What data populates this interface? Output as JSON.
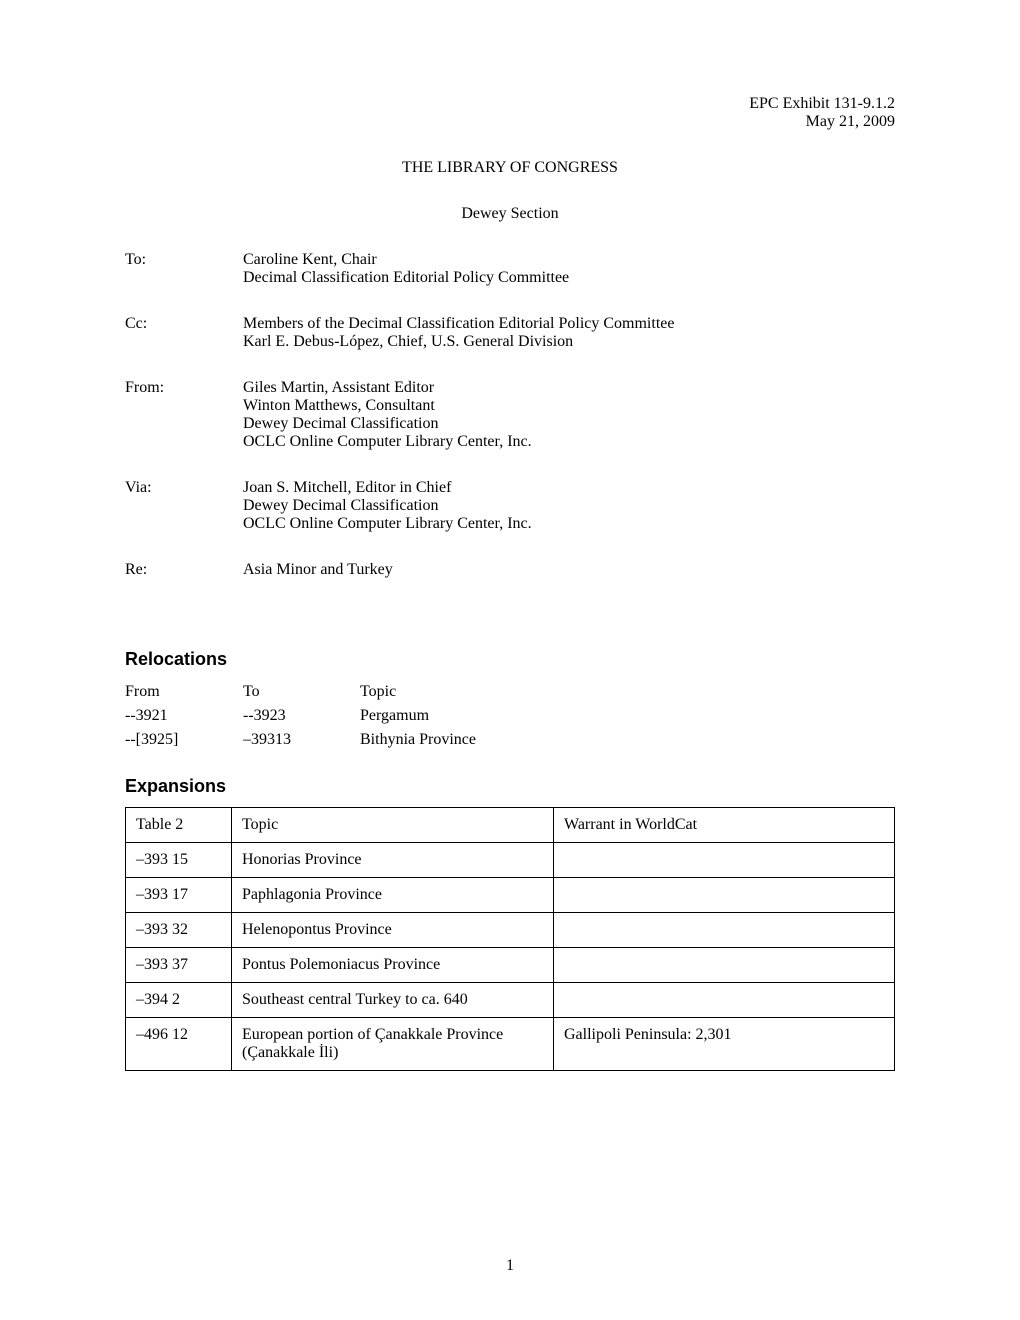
{
  "header": {
    "exhibit": "EPC Exhibit 131-9.1.2",
    "date": "May 21, 2009"
  },
  "title": "THE LIBRARY OF CONGRESS",
  "subtitle": "Dewey Section",
  "memo": {
    "to_label": "To:",
    "to_line1": "Caroline Kent, Chair",
    "to_line2": "Decimal Classification Editorial Policy Committee",
    "cc_label": "Cc:",
    "cc_line1": "Members of the Decimal Classification Editorial Policy Committee",
    "cc_line2": "Karl E. Debus-López, Chief, U.S. General Division",
    "from_label": "From:",
    "from_line1": "Giles Martin, Assistant Editor",
    "from_line2": "Winton Matthews, Consultant",
    "from_line3": "Dewey Decimal Classification",
    "from_line4": "OCLC Online Computer Library Center, Inc.",
    "via_label": "Via:",
    "via_line1": "Joan S. Mitchell, Editor in Chief",
    "via_line2": "Dewey Decimal Classification",
    "via_line3": "OCLC Online Computer Library Center, Inc.",
    "re_label": "Re:",
    "re_line1": "Asia Minor and Turkey"
  },
  "relocations": {
    "heading": "Relocations",
    "columns": [
      "From",
      "To",
      "Topic"
    ],
    "rows": [
      [
        "--3921",
        "--3923",
        "Pergamum"
      ],
      [
        "--[3925]",
        "–39313",
        "Bithynia Province"
      ]
    ]
  },
  "expansions": {
    "heading": "Expansions",
    "columns": [
      "Table 2",
      "Topic",
      "Warrant in WorldCat"
    ],
    "rows": [
      [
        "–393 15",
        "Honorias Province",
        ""
      ],
      [
        "–393 17",
        "Paphlagonia Province",
        ""
      ],
      [
        "–393 32",
        "Helenopontus Province",
        ""
      ],
      [
        "–393 37",
        "Pontus Polemoniacus Province",
        ""
      ],
      [
        "–394 2",
        "Southeast central Turkey to ca. 640",
        ""
      ],
      [
        "–496 12",
        "European portion of Çanakkale Province (Çanakkale İli)",
        "Gallipoli Peninsula: 2,301"
      ]
    ]
  },
  "page_number": "1"
}
